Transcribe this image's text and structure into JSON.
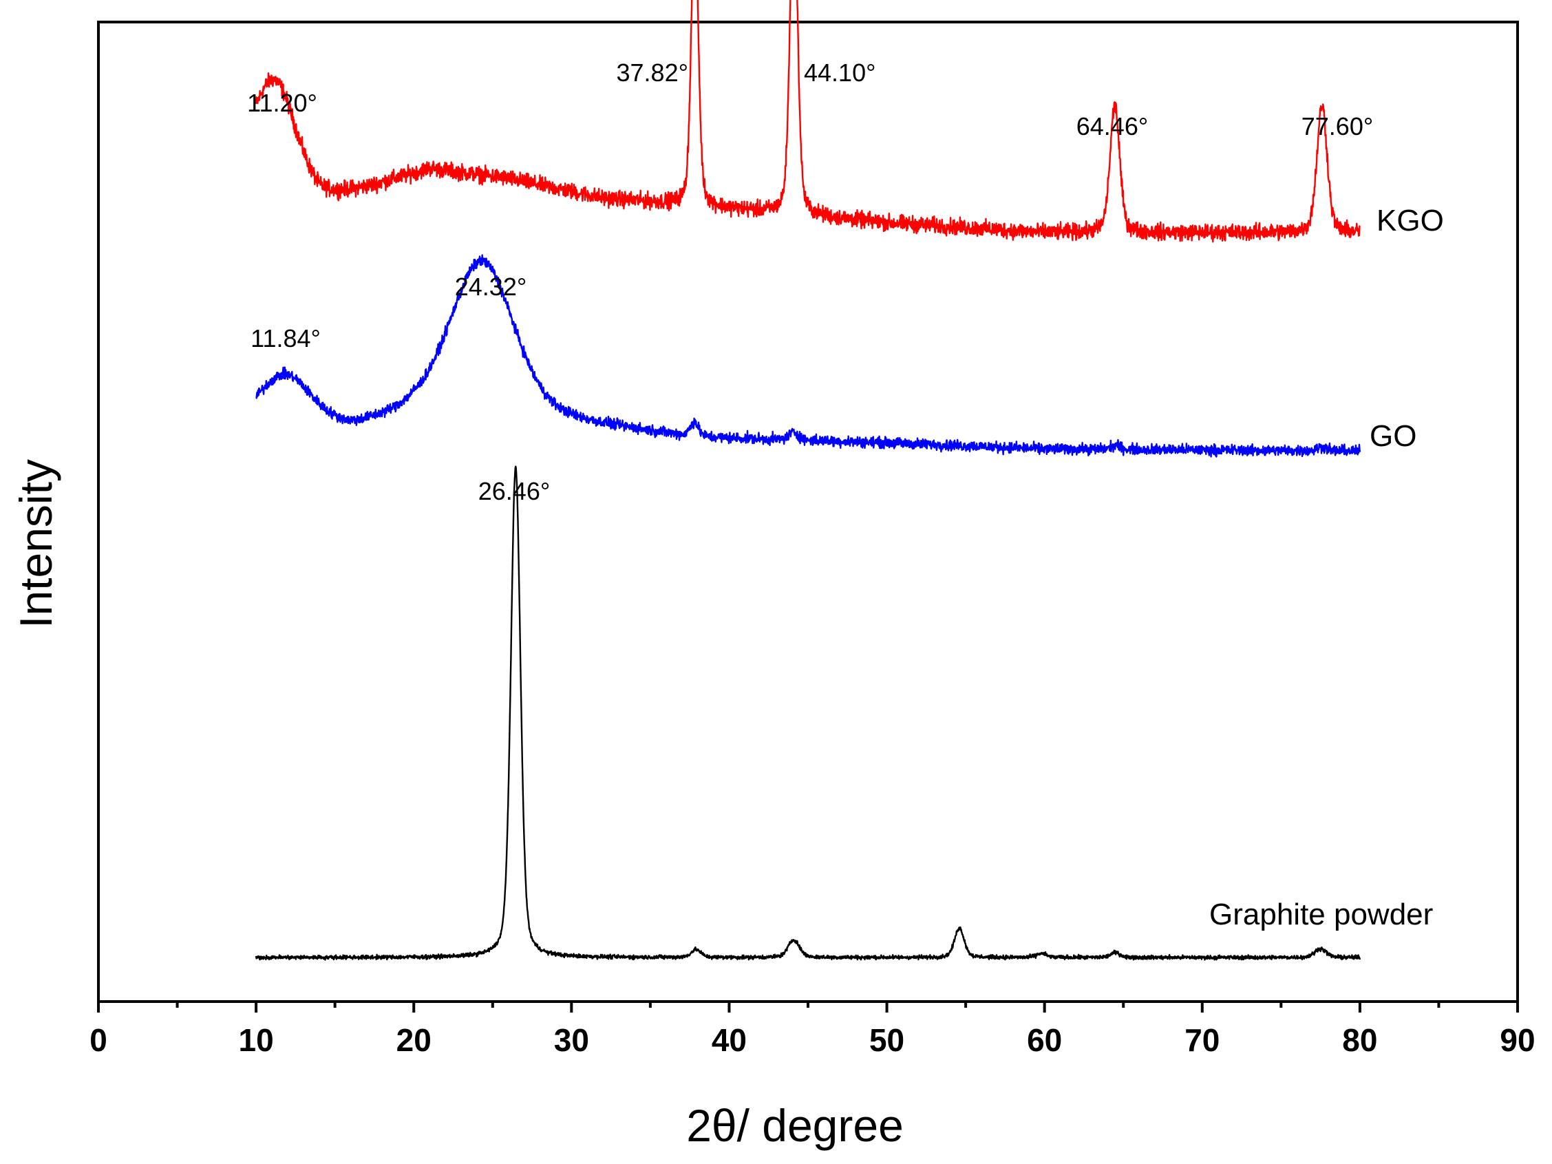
{
  "chart_data": {
    "type": "line",
    "title": "",
    "xlabel": "2θ/ degree",
    "ylabel": "Intensity",
    "xlim": [
      0,
      90
    ],
    "x_ticks": [
      "0",
      "10",
      "20",
      "30",
      "40",
      "50",
      "60",
      "70",
      "80",
      "90"
    ],
    "y_ticks_shown": false,
    "grid": false,
    "legend": "none (series labelled at right end of each trace)",
    "series": [
      {
        "name": "KGO",
        "color": "#ff0000",
        "x_range": [
          10,
          80
        ],
        "offset": 0.82,
        "baseline": [
          [
            10,
            0.03
          ],
          [
            14,
            0.0
          ],
          [
            17,
            0.01
          ],
          [
            21,
            0.03
          ],
          [
            26,
            0.02
          ],
          [
            32,
            0.0
          ],
          [
            36,
            -0.005
          ],
          [
            50,
            -0.025
          ],
          [
            60,
            -0.035
          ],
          [
            70,
            -0.035
          ],
          [
            80,
            -0.035
          ]
        ],
        "peaks": [
          {
            "x": 11.2,
            "height": 0.1,
            "width": 1.3
          },
          {
            "x": 37.82,
            "height": 0.3,
            "width": 0.22
          },
          {
            "x": 44.1,
            "height": 0.33,
            "width": 0.24
          },
          {
            "x": 64.46,
            "height": 0.13,
            "width": 0.3
          },
          {
            "x": 77.6,
            "height": 0.13,
            "width": 0.32
          }
        ],
        "noise": 0.012,
        "label": "KGO",
        "annotations": [
          "11.20°",
          "37.82°",
          "44.10°",
          "64.46°",
          "77.60°"
        ]
      },
      {
        "name": "GO",
        "color": "#0000ff",
        "x_range": [
          10,
          80
        ],
        "offset": 0.57,
        "baseline": [
          [
            10,
            0.02
          ],
          [
            16,
            0.015
          ],
          [
            20,
            0.03
          ],
          [
            30,
            0.02
          ],
          [
            38,
            0.005
          ],
          [
            50,
            0.0
          ],
          [
            60,
            -0.006
          ],
          [
            80,
            -0.008
          ]
        ],
        "peaks": [
          {
            "x": 11.84,
            "height": 0.05,
            "width": 1.6
          },
          {
            "x": 24.32,
            "height": 0.16,
            "width": 2.0
          },
          {
            "x": 37.8,
            "height": 0.015,
            "width": 0.25
          },
          {
            "x": 44.1,
            "height": 0.008,
            "width": 0.3
          },
          {
            "x": 64.5,
            "height": 0.004,
            "width": 0.3
          },
          {
            "x": 77.6,
            "height": 0.004,
            "width": 0.3
          }
        ],
        "noise": 0.008,
        "label": "GO",
        "annotations": [
          "11.84°",
          "24.32°"
        ]
      },
      {
        "name": "Graphite powder",
        "color": "#000000",
        "x_range": [
          10,
          80
        ],
        "offset": 0.045,
        "baseline": [
          [
            10,
            0.0
          ],
          [
            80,
            0.0
          ]
        ],
        "peaks": [
          {
            "x": 26.46,
            "height": 0.5,
            "width": 0.3
          },
          {
            "x": 37.9,
            "height": 0.008,
            "width": 0.3
          },
          {
            "x": 44.1,
            "height": 0.018,
            "width": 0.35
          },
          {
            "x": 54.6,
            "height": 0.03,
            "width": 0.3
          },
          {
            "x": 59.8,
            "height": 0.004,
            "width": 0.3
          },
          {
            "x": 64.5,
            "height": 0.005,
            "width": 0.3
          },
          {
            "x": 77.5,
            "height": 0.009,
            "width": 0.35
          }
        ],
        "noise": 0.003,
        "label": "Graphite powder",
        "annotations": [
          "26.46°"
        ]
      }
    ]
  }
}
